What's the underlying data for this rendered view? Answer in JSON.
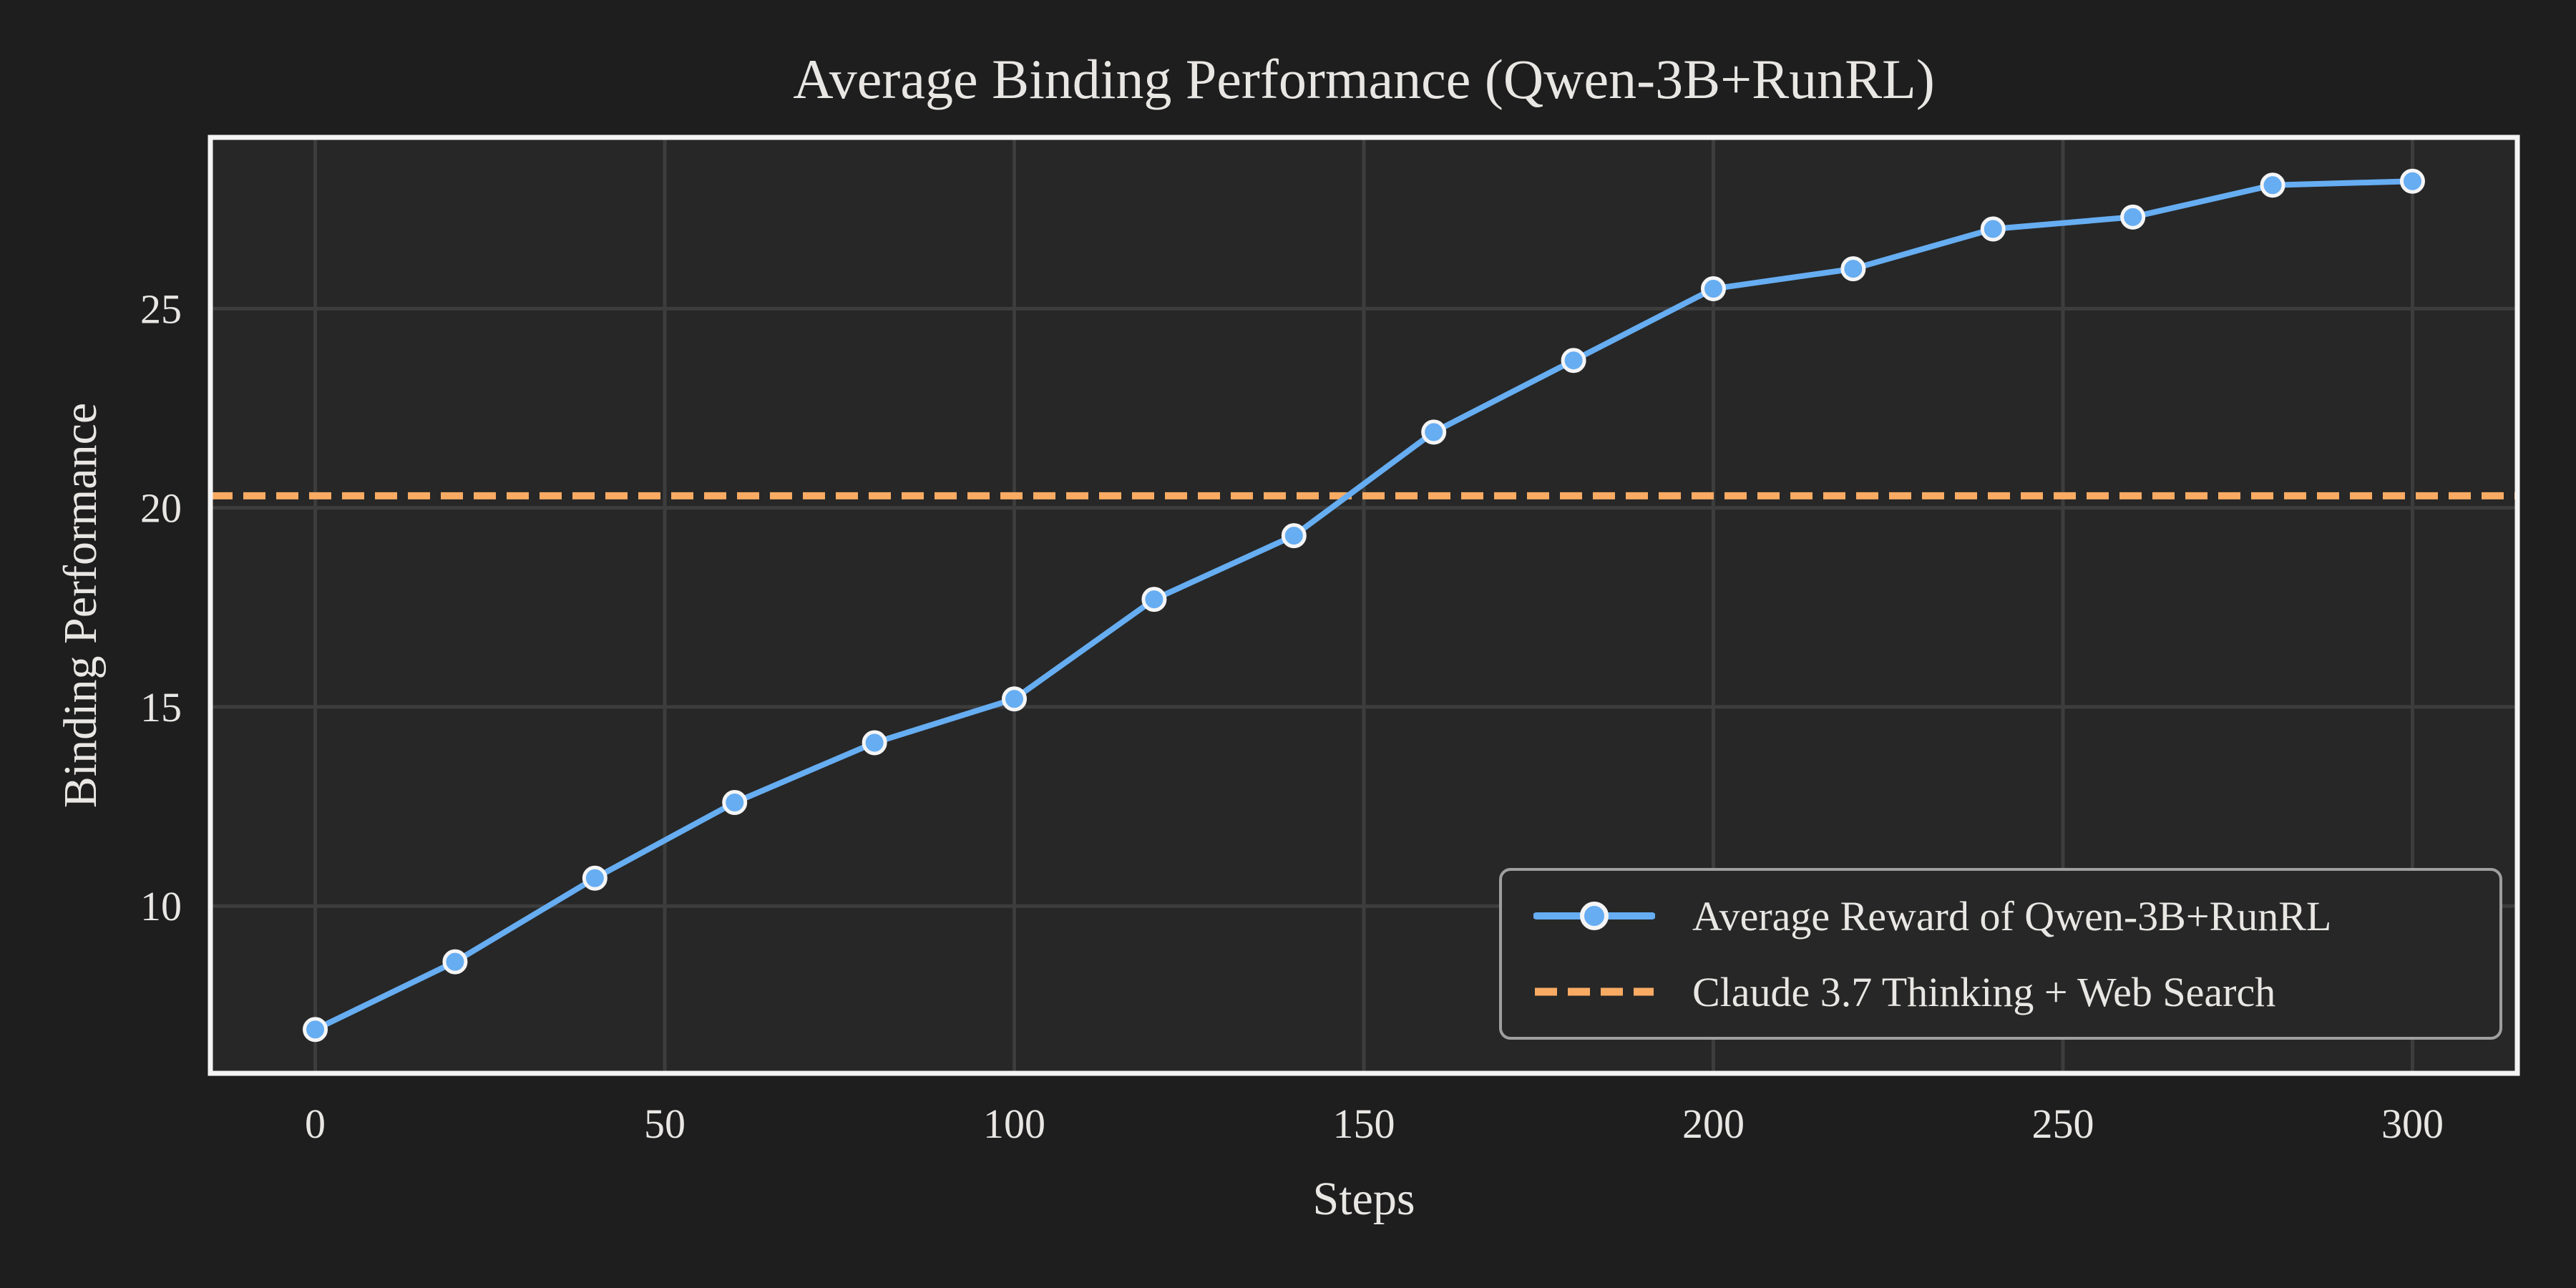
{
  "chart_data": {
    "type": "line",
    "title": "Average Binding Performance (Qwen-3B+RunRL)",
    "xlabel": "Steps",
    "ylabel": "Binding Performance",
    "xlim": [
      -15,
      315
    ],
    "ylim": [
      5.8,
      29.3
    ],
    "x_ticks": [
      0,
      50,
      100,
      150,
      200,
      250,
      300
    ],
    "y_ticks": [
      10,
      15,
      20,
      25
    ],
    "grid": true,
    "legend_position": "lower right",
    "x": [
      0,
      20,
      40,
      60,
      80,
      100,
      120,
      140,
      160,
      180,
      200,
      220,
      240,
      260,
      280,
      300
    ],
    "series": [
      {
        "name": "Average Reward of Qwen-3B+RunRL",
        "kind": "line-with-circle-markers",
        "color": "#66adf2",
        "marker_edge_color": "#f5f5f5",
        "values": [
          6.9,
          8.6,
          10.7,
          12.6,
          14.1,
          15.2,
          17.7,
          19.3,
          21.9,
          23.7,
          25.5,
          26.0,
          27.0,
          27.3,
          28.1,
          28.2
        ]
      },
      {
        "name": "Claude 3.7 Thinking + Web Search",
        "kind": "horizontal-dashed-line",
        "color": "#f9ab63",
        "value": 20.3
      }
    ],
    "colors": {
      "figure_background": "#1e1e1f",
      "plot_background": "#272727",
      "grid": "#3d3d3d",
      "spine": "#f4f4f4",
      "text": "#e9e7e4",
      "legend_border": "#9f9f9f",
      "legend_background": "#272727"
    }
  }
}
